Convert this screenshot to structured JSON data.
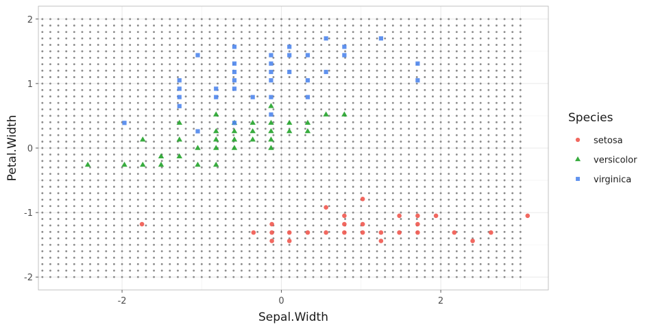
{
  "chart_data": {
    "type": "scatter",
    "title": "",
    "xlabel": "Sepal.Width",
    "ylabel": "Petal.Width",
    "xlim": [
      -3.05,
      3.35
    ],
    "ylim": [
      -2.2,
      2.2
    ],
    "x_ticks": [
      -2,
      0,
      2
    ],
    "x_tick_labels": [
      "-2",
      "0",
      "2"
    ],
    "y_ticks": [
      -2,
      -1,
      0,
      1,
      2
    ],
    "y_tick_labels": [
      "-2",
      "-1",
      "0",
      "1",
      "2"
    ],
    "grid": true,
    "background_grid_points": {
      "x_start": -3.0,
      "x_end": 3.0,
      "x_count": 61,
      "y_start": -2.0,
      "y_end": 2.0,
      "y_count": 41,
      "color": "#8c8c8c"
    },
    "legend": {
      "title": "Species",
      "position": "right",
      "entries": [
        "setosa",
        "versicolor",
        "virginica"
      ]
    },
    "series": [
      {
        "name": "setosa",
        "color": "#f0584f",
        "marker": "circle",
        "points": [
          [
            -1.75,
            -1.18
          ],
          [
            -0.35,
            -1.31
          ],
          [
            -0.12,
            -1.18
          ],
          [
            -0.12,
            -1.31
          ],
          [
            -0.12,
            -1.44
          ],
          [
            0.1,
            -1.31
          ],
          [
            0.1,
            -1.44
          ],
          [
            0.33,
            -1.31
          ],
          [
            0.56,
            -1.31
          ],
          [
            0.56,
            -0.92
          ],
          [
            0.79,
            -1.05
          ],
          [
            0.79,
            -1.18
          ],
          [
            0.79,
            -1.31
          ],
          [
            1.02,
            -0.79
          ],
          [
            1.02,
            -1.18
          ],
          [
            1.02,
            -1.31
          ],
          [
            1.25,
            -1.31
          ],
          [
            1.25,
            -1.44
          ],
          [
            1.48,
            -1.05
          ],
          [
            1.48,
            -1.31
          ],
          [
            1.71,
            -1.05
          ],
          [
            1.71,
            -1.18
          ],
          [
            1.71,
            -1.31
          ],
          [
            1.94,
            -1.05
          ],
          [
            2.17,
            -1.31
          ],
          [
            2.4,
            -1.44
          ],
          [
            2.63,
            -1.31
          ],
          [
            3.09,
            -1.05
          ]
        ]
      },
      {
        "name": "versicolor",
        "color": "#22a32a",
        "marker": "triangle",
        "points": [
          [
            -2.43,
            -0.26
          ],
          [
            -1.97,
            -0.26
          ],
          [
            -1.74,
            0.13
          ],
          [
            -1.74,
            -0.26
          ],
          [
            -1.51,
            -0.13
          ],
          [
            -1.51,
            -0.26
          ],
          [
            -1.28,
            0.39
          ],
          [
            -1.28,
            0.13
          ],
          [
            -1.28,
            -0.13
          ],
          [
            -1.05,
            0.0
          ],
          [
            -1.05,
            -0.26
          ],
          [
            -0.82,
            0.52
          ],
          [
            -0.82,
            0.26
          ],
          [
            -0.82,
            0.13
          ],
          [
            -0.82,
            0.0
          ],
          [
            -0.82,
            -0.26
          ],
          [
            -0.59,
            0.39
          ],
          [
            -0.59,
            0.26
          ],
          [
            -0.59,
            0.13
          ],
          [
            -0.59,
            0.0
          ],
          [
            -0.36,
            0.39
          ],
          [
            -0.36,
            0.26
          ],
          [
            -0.36,
            0.13
          ],
          [
            -0.13,
            0.65
          ],
          [
            -0.13,
            0.39
          ],
          [
            -0.13,
            0.26
          ],
          [
            -0.13,
            0.13
          ],
          [
            -0.13,
            0.0
          ],
          [
            0.1,
            0.39
          ],
          [
            0.1,
            0.26
          ],
          [
            0.33,
            0.39
          ],
          [
            0.33,
            0.26
          ],
          [
            0.56,
            0.52
          ],
          [
            0.79,
            0.52
          ]
        ]
      },
      {
        "name": "virginica",
        "color": "#4f86ec",
        "marker": "square",
        "points": [
          [
            -1.97,
            0.39
          ],
          [
            -1.28,
            1.05
          ],
          [
            -1.28,
            0.92
          ],
          [
            -1.28,
            0.79
          ],
          [
            -1.28,
            0.65
          ],
          [
            -1.05,
            1.44
          ],
          [
            -1.05,
            0.26
          ],
          [
            -0.82,
            0.92
          ],
          [
            -0.82,
            0.79
          ],
          [
            -0.59,
            1.57
          ],
          [
            -0.59,
            1.31
          ],
          [
            -0.59,
            1.18
          ],
          [
            -0.59,
            1.05
          ],
          [
            -0.59,
            0.92
          ],
          [
            -0.59,
            0.39
          ],
          [
            -0.36,
            0.79
          ],
          [
            -0.13,
            1.44
          ],
          [
            -0.13,
            1.31
          ],
          [
            -0.13,
            1.18
          ],
          [
            -0.13,
            1.05
          ],
          [
            -0.13,
            0.79
          ],
          [
            -0.13,
            0.52
          ],
          [
            0.1,
            1.57
          ],
          [
            0.1,
            1.44
          ],
          [
            0.1,
            1.18
          ],
          [
            0.33,
            1.44
          ],
          [
            0.33,
            1.05
          ],
          [
            0.33,
            0.79
          ],
          [
            0.56,
            1.7
          ],
          [
            0.56,
            1.18
          ],
          [
            0.79,
            1.57
          ],
          [
            0.79,
            1.44
          ],
          [
            1.25,
            1.7
          ],
          [
            1.71,
            1.31
          ],
          [
            1.71,
            1.05
          ]
        ]
      }
    ]
  }
}
